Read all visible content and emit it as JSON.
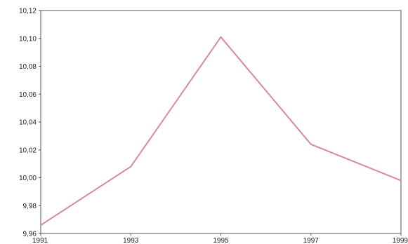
{
  "chart_data": {
    "type": "line",
    "x": [
      "1991",
      "1993",
      "1995",
      "1997",
      "1999"
    ],
    "series": [
      {
        "values": [
          9.966,
          10.008,
          10.101,
          10.024,
          9.998
        ]
      }
    ],
    "y_ticks": [
      "9,96",
      "9,98",
      "10,00",
      "10,02",
      "10,04",
      "10,06",
      "10,08",
      "10,10",
      "10,12"
    ],
    "ylim": [
      9.96,
      10.12
    ],
    "grid": false,
    "title": "",
    "xlabel": "",
    "ylabel": "",
    "line_color": "#d68c9a",
    "axis_color": "#555555"
  }
}
